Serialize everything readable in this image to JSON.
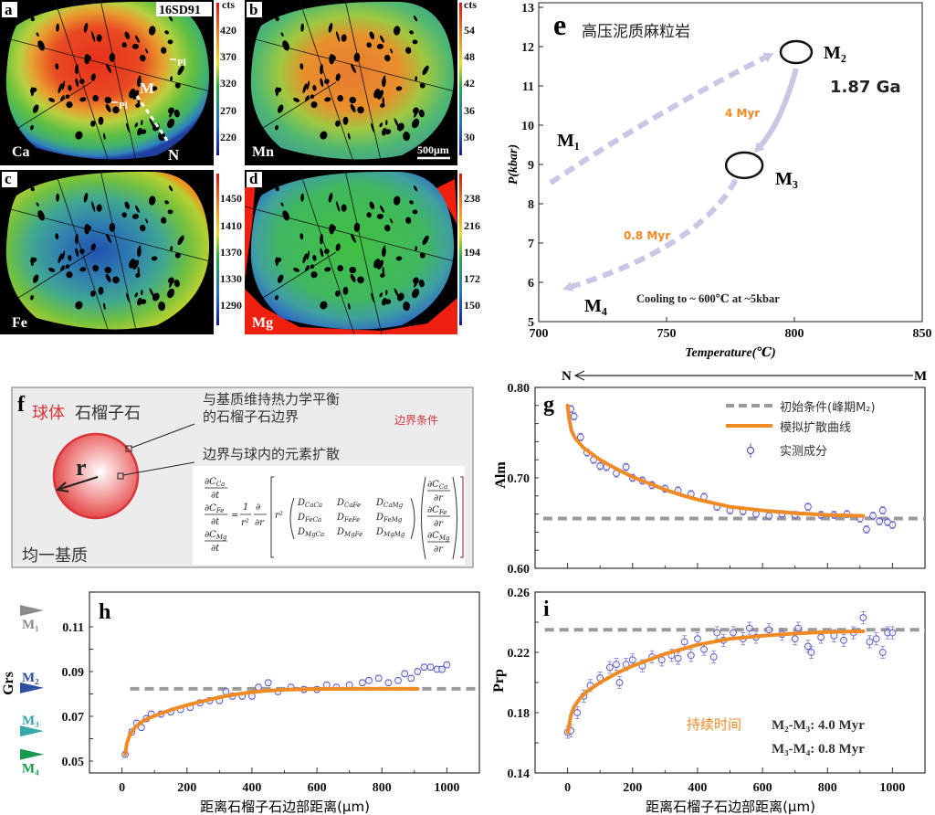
{
  "maps": [
    {
      "panel": "a",
      "element": "Ca",
      "unit": "cts",
      "ticks": [
        "420",
        "370",
        "320",
        "270",
        "220"
      ],
      "sample": "16SD91",
      "markers": {
        "pl_upper": "Pl",
        "pl_lower": "Pl",
        "m": "M",
        "n": "N"
      }
    },
    {
      "panel": "b",
      "element": "Mn",
      "unit": "cts",
      "ticks": [
        "54",
        "48",
        "42",
        "36",
        "30"
      ],
      "scale_bar": "500μm"
    },
    {
      "panel": "c",
      "element": "Fe",
      "ticks": [
        "1450",
        "1410",
        "1370",
        "1330",
        "1290"
      ]
    },
    {
      "panel": "d",
      "element": "Mg",
      "ticks": [
        "238",
        "216",
        "194",
        "172",
        "150"
      ]
    }
  ],
  "model": {
    "panel": "f",
    "title_red": "球体",
    "title": "石榴子石",
    "boundary_label_1": "与基质维持热力学平衡",
    "boundary_label_2": "的石榴子石边界",
    "boundary_condition": "边界条件",
    "diffusion_label": "边界与球内的元素扩散",
    "matrix_label": "均一基质",
    "radius": "r",
    "equation": {
      "dC": "∂C",
      "dt": "∂t",
      "dr": "∂r",
      "d": "∂",
      "one": "1",
      "r2": "r²",
      "eq": "=",
      "D": "D",
      "species": [
        "Ca",
        "Fe",
        "Mg"
      ],
      "matrix": [
        [
          "CaCa",
          "CaFe",
          "CaMg"
        ],
        [
          "FeCa",
          "FeFe",
          "FeMg"
        ],
        [
          "MgCa",
          "MgFe",
          "MgMg"
        ]
      ]
    }
  },
  "profile": {
    "from": "N",
    "to": "M"
  },
  "chart_data": [
    {
      "panel": "e",
      "type": "line",
      "title": "高压泥质麻粒岩",
      "xlabel": "Temperature(℃)",
      "ylabel": "P(kbar)",
      "xlim": [
        700,
        850
      ],
      "ylim": [
        5,
        13
      ],
      "xticks": [
        "700",
        "750",
        "800",
        "850"
      ],
      "yticks": [
        "5",
        "6",
        "7",
        "8",
        "9",
        "10",
        "11",
        "12",
        "13"
      ],
      "stages": {
        "m1": "M₁",
        "m2": "M₂",
        "m3": "M₃",
        "m4": "M₄"
      },
      "ellipses": [
        {
          "stage": "M2",
          "T": 800.7,
          "P": 11.86
        },
        {
          "stage": "M3",
          "T": 780.4,
          "P": 8.98
        }
      ],
      "paths": [
        {
          "style": "dashed",
          "from": [
            704.6,
            8.53
          ],
          "ctrl": [
            745,
            10.3
          ],
          "to": [
            790,
            11.77
          ]
        },
        {
          "style": "solid",
          "from": [
            800.7,
            11.44
          ],
          "ctrl": [
            794.6,
            10.0
          ],
          "to": [
            785.7,
            9.4
          ]
        },
        {
          "style": "dashed",
          "from": [
            777,
            8.6
          ],
          "ctrl": [
            762.7,
            6.9
          ],
          "to": [
            711.4,
            5.86
          ]
        }
      ],
      "annotations": {
        "age": "1.87 Ga",
        "dur_m2_m3": "4 Myr",
        "dur_m3_m4": "0.8 Myr",
        "cooling": "Cooling to ~ 600℃ at ~5kbar"
      },
      "colors": {
        "path": "#c8c8e6",
        "duration": "#f08a24"
      }
    },
    {
      "panel": "g",
      "type": "scatter",
      "ylabel": "Alm",
      "xlim": [
        -100,
        1100
      ],
      "ylim": [
        0.6,
        0.8
      ],
      "yticks": [
        "0.60",
        "0.70",
        "0.80"
      ],
      "yminor": 0.02,
      "legend": {
        "initial": "初始条件(峰期M₂)",
        "model": "模拟扩散曲线",
        "measured": "实测成分"
      },
      "legend_position": "top-right",
      "initial_value": 0.655,
      "err": 0.004,
      "model": [
        [
          0,
          0.78
        ],
        [
          5,
          0.765
        ],
        [
          12,
          0.752
        ],
        [
          25,
          0.743
        ],
        [
          50,
          0.733
        ],
        [
          100,
          0.72
        ],
        [
          150,
          0.71
        ],
        [
          200,
          0.701
        ],
        [
          250,
          0.694
        ],
        [
          300,
          0.687
        ],
        [
          350,
          0.681
        ],
        [
          400,
          0.676
        ],
        [
          450,
          0.672
        ],
        [
          500,
          0.668
        ],
        [
          600,
          0.664
        ],
        [
          700,
          0.661
        ],
        [
          800,
          0.659
        ],
        [
          910,
          0.658
        ]
      ],
      "measured": [
        [
          10,
          0.776
        ],
        [
          20,
          0.768
        ],
        [
          40,
          0.745
        ],
        [
          60,
          0.728
        ],
        [
          80,
          0.72
        ],
        [
          100,
          0.713
        ],
        [
          120,
          0.712
        ],
        [
          150,
          0.705
        ],
        [
          180,
          0.712
        ],
        [
          200,
          0.7
        ],
        [
          230,
          0.697
        ],
        [
          260,
          0.692
        ],
        [
          300,
          0.688
        ],
        [
          340,
          0.686
        ],
        [
          380,
          0.682
        ],
        [
          420,
          0.679
        ],
        [
          460,
          0.668
        ],
        [
          500,
          0.664
        ],
        [
          540,
          0.663
        ],
        [
          580,
          0.66
        ],
        [
          620,
          0.658
        ],
        [
          660,
          0.66
        ],
        [
          700,
          0.659
        ],
        [
          740,
          0.668
        ],
        [
          780,
          0.659
        ],
        [
          820,
          0.659
        ],
        [
          860,
          0.66
        ],
        [
          900,
          0.655
        ],
        [
          920,
          0.643
        ],
        [
          940,
          0.658
        ],
        [
          960,
          0.652
        ],
        [
          970,
          0.664
        ],
        [
          985,
          0.651
        ],
        [
          1000,
          0.648
        ]
      ]
    },
    {
      "panel": "h",
      "type": "scatter",
      "ylabel": "Grs",
      "xlabel": "距离石榴子石边部距离(μm)",
      "xlim": [
        -100,
        1100
      ],
      "ylim": [
        0.0447,
        0.1255
      ],
      "xticks": [
        "0",
        "200",
        "400",
        "600",
        "800",
        "1000"
      ],
      "yticks": [
        "0.05",
        "0.07",
        "0.09",
        "0.11"
      ],
      "yminor": 0.01,
      "initial_value": 0.0823,
      "err": 0.0013,
      "stage_markers": [
        {
          "label": "M₁",
          "value": 0.1173,
          "color": "#8c8c8c"
        },
        {
          "label": "M₂",
          "value": 0.0827,
          "color": "#2e4fa0"
        },
        {
          "label": "M₃",
          "value": 0.0634,
          "color": "#35a8a8"
        },
        {
          "label": "M₄",
          "value": 0.053,
          "color": "#1a9a50"
        }
      ],
      "model": [
        [
          10,
          0.053
        ],
        [
          15,
          0.058
        ],
        [
          25,
          0.062
        ],
        [
          40,
          0.065
        ],
        [
          60,
          0.0675
        ],
        [
          80,
          0.069
        ],
        [
          120,
          0.0713
        ],
        [
          160,
          0.0733
        ],
        [
          200,
          0.075
        ],
        [
          250,
          0.0768
        ],
        [
          300,
          0.0785
        ],
        [
          350,
          0.0798
        ],
        [
          400,
          0.0808
        ],
        [
          450,
          0.0815
        ],
        [
          500,
          0.0819
        ],
        [
          600,
          0.0822
        ],
        [
          700,
          0.0823
        ],
        [
          910,
          0.0823
        ]
      ],
      "measured": [
        [
          10,
          0.053
        ],
        [
          30,
          0.063
        ],
        [
          45,
          0.067
        ],
        [
          60,
          0.065
        ],
        [
          75,
          0.069
        ],
        [
          90,
          0.071
        ],
        [
          120,
          0.071
        ],
        [
          150,
          0.072
        ],
        [
          180,
          0.073
        ],
        [
          210,
          0.074
        ],
        [
          240,
          0.076
        ],
        [
          270,
          0.077
        ],
        [
          300,
          0.077
        ],
        [
          320,
          0.081
        ],
        [
          340,
          0.079
        ],
        [
          370,
          0.079
        ],
        [
          400,
          0.079
        ],
        [
          420,
          0.083
        ],
        [
          450,
          0.085
        ],
        [
          480,
          0.081
        ],
        [
          520,
          0.083
        ],
        [
          560,
          0.082
        ],
        [
          600,
          0.082
        ],
        [
          630,
          0.084
        ],
        [
          660,
          0.083
        ],
        [
          700,
          0.084
        ],
        [
          740,
          0.085
        ],
        [
          760,
          0.086
        ],
        [
          790,
          0.087
        ],
        [
          820,
          0.085
        ],
        [
          850,
          0.086
        ],
        [
          870,
          0.089
        ],
        [
          890,
          0.087
        ],
        [
          910,
          0.09
        ],
        [
          930,
          0.092
        ],
        [
          950,
          0.092
        ],
        [
          970,
          0.091
        ],
        [
          985,
          0.091
        ],
        [
          1000,
          0.093
        ]
      ]
    },
    {
      "panel": "i",
      "type": "scatter",
      "ylabel": "Prp",
      "xlabel": "距离石榴子石边部距离(μm)",
      "xlim": [
        -100,
        1100
      ],
      "ylim": [
        0.14,
        0.26
      ],
      "xticks": [
        "0",
        "200",
        "400",
        "600",
        "800",
        "1000"
      ],
      "yticks": [
        "0.14",
        "0.18",
        "0.22",
        "0.26"
      ],
      "yminor": 0.02,
      "initial_value": 0.235,
      "err": 0.004,
      "duration": {
        "label": "持续时间",
        "m2_m3": "M₂-M₃:  4.0 Myr",
        "m3_m4": "M₃-M₄:  0.8 Myr"
      },
      "model": [
        [
          0,
          0.167
        ],
        [
          5,
          0.172
        ],
        [
          10,
          0.178
        ],
        [
          20,
          0.184
        ],
        [
          40,
          0.19
        ],
        [
          60,
          0.194
        ],
        [
          100,
          0.2
        ],
        [
          150,
          0.206
        ],
        [
          200,
          0.211
        ],
        [
          250,
          0.215
        ],
        [
          300,
          0.219
        ],
        [
          350,
          0.222
        ],
        [
          400,
          0.225
        ],
        [
          450,
          0.227
        ],
        [
          500,
          0.229
        ],
        [
          600,
          0.231
        ],
        [
          700,
          0.2325
        ],
        [
          800,
          0.2335
        ],
        [
          910,
          0.234
        ]
      ],
      "measured": [
        [
          0,
          0.167
        ],
        [
          10,
          0.168
        ],
        [
          30,
          0.18
        ],
        [
          50,
          0.191
        ],
        [
          70,
          0.198
        ],
        [
          100,
          0.203
        ],
        [
          130,
          0.21
        ],
        [
          150,
          0.212
        ],
        [
          160,
          0.2
        ],
        [
          180,
          0.212
        ],
        [
          200,
          0.215
        ],
        [
          230,
          0.211
        ],
        [
          260,
          0.217
        ],
        [
          290,
          0.215
        ],
        [
          320,
          0.218
        ],
        [
          340,
          0.216
        ],
        [
          360,
          0.227
        ],
        [
          380,
          0.218
        ],
        [
          400,
          0.229
        ],
        [
          420,
          0.222
        ],
        [
          450,
          0.217
        ],
        [
          460,
          0.233
        ],
        [
          480,
          0.228
        ],
        [
          510,
          0.233
        ],
        [
          540,
          0.229
        ],
        [
          560,
          0.236
        ],
        [
          580,
          0.23
        ],
        [
          620,
          0.235
        ],
        [
          660,
          0.232
        ],
        [
          700,
          0.229
        ],
        [
          710,
          0.236
        ],
        [
          740,
          0.224
        ],
        [
          750,
          0.22
        ],
        [
          780,
          0.23
        ],
        [
          820,
          0.231
        ],
        [
          850,
          0.228
        ],
        [
          880,
          0.233
        ],
        [
          910,
          0.243
        ],
        [
          930,
          0.227
        ],
        [
          950,
          0.229
        ],
        [
          970,
          0.22
        ],
        [
          985,
          0.233
        ],
        [
          1000,
          0.233
        ]
      ]
    }
  ],
  "colors": {
    "model": "#f08a24",
    "initial": "#9a9a9a",
    "measured": "#5a5ac8",
    "highlight": "#d8343a"
  }
}
